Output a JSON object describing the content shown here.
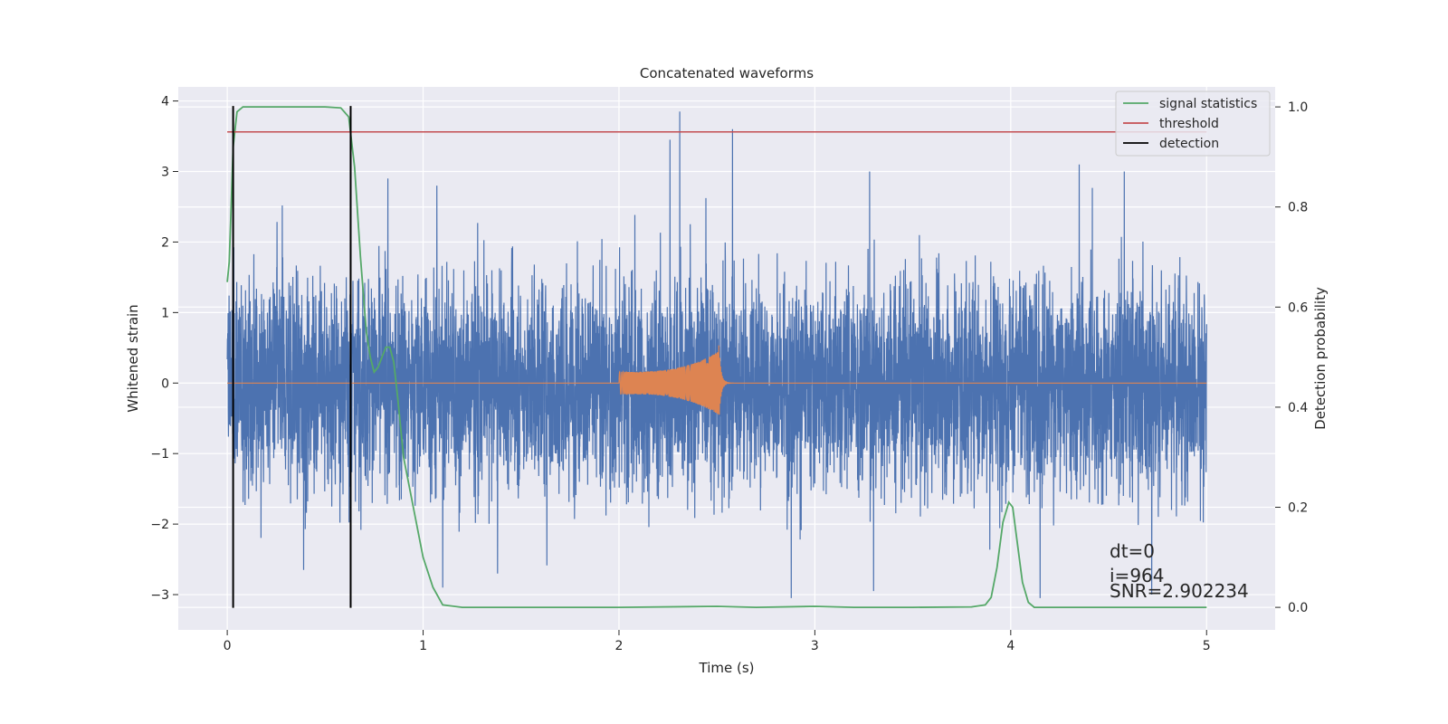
{
  "chart_data": {
    "type": "line",
    "title": "Concatenated waveforms",
    "xlabel": "Time (s)",
    "ylabel": "Whitened strain",
    "y2label": "Detection probability",
    "xlim": [
      -0.25,
      5.35
    ],
    "ylim": [
      -3.5,
      4.2
    ],
    "y2lim": [
      -0.045,
      1.04
    ],
    "xticks": [
      0,
      1,
      2,
      3,
      4,
      5
    ],
    "yticks": [
      -3,
      -2,
      -1,
      0,
      1,
      2,
      3,
      4
    ],
    "y2ticks": [
      0.0,
      0.2,
      0.4,
      0.6,
      0.8,
      1.0
    ],
    "grid": true,
    "legend_position": "top-right",
    "colors": {
      "background": "#eaeaf2",
      "noise": "#4c72b0",
      "injection": "#dd8452",
      "signal_statistics": "#55a868",
      "threshold": "#c44e52",
      "detection": "#000000"
    },
    "legend": [
      {
        "label": "signal statistics",
        "color": "#55a868"
      },
      {
        "label": "threshold",
        "color": "#c44e52"
      },
      {
        "label": "detection",
        "color": "#000000"
      }
    ],
    "noise": {
      "x_range": [
        0,
        5
      ],
      "typical_amplitude": 1.6,
      "peaks": [
        {
          "x": 2.31,
          "y": 3.85
        },
        {
          "x": 2.26,
          "y": 3.45
        },
        {
          "x": 2.58,
          "y": 3.6
        },
        {
          "x": 4.15,
          "y": 3.4
        },
        {
          "x": 1.07,
          "y": 2.8
        },
        {
          "x": 0.82,
          "y": 2.9
        },
        {
          "x": 3.28,
          "y": 3.0
        },
        {
          "x": 4.35,
          "y": 3.1
        },
        {
          "x": 4.58,
          "y": 3.0
        },
        {
          "x": 4.15,
          "y": -3.05
        },
        {
          "x": 2.88,
          "y": -3.05
        },
        {
          "x": 3.3,
          "y": -2.95
        },
        {
          "x": 1.1,
          "y": -2.9
        },
        {
          "x": 0.39,
          "y": -2.65
        },
        {
          "x": 4.72,
          "y": -3.0
        },
        {
          "x": 1.38,
          "y": -2.7
        }
      ]
    },
    "injection": {
      "start": 2.0,
      "merger": 2.51,
      "end": 2.6,
      "peak_amplitude": 0.45
    },
    "signal_statistics": {
      "x": [
        0.0,
        0.01,
        0.02,
        0.03,
        0.05,
        0.08,
        0.12,
        0.3,
        0.5,
        0.58,
        0.62,
        0.65,
        0.68,
        0.71,
        0.73,
        0.75,
        0.77,
        0.79,
        0.81,
        0.83,
        0.85,
        0.87,
        0.9,
        0.95,
        1.0,
        1.05,
        1.1,
        1.2,
        1.5,
        2.0,
        2.5,
        2.7,
        3.0,
        3.2,
        3.5,
        3.8,
        3.87,
        3.9,
        3.93,
        3.96,
        3.99,
        4.01,
        4.03,
        4.06,
        4.09,
        4.12,
        4.15,
        4.3,
        5.0
      ],
      "y": [
        0.65,
        0.69,
        0.8,
        0.92,
        0.99,
        1.0,
        1.0,
        1.0,
        1.0,
        0.998,
        0.98,
        0.88,
        0.7,
        0.55,
        0.5,
        0.47,
        0.48,
        0.5,
        0.52,
        0.52,
        0.49,
        0.42,
        0.3,
        0.2,
        0.1,
        0.04,
        0.005,
        0.0,
        0.0,
        0.0,
        0.002,
        0.0,
        0.002,
        0.0,
        0.0,
        0.001,
        0.005,
        0.02,
        0.08,
        0.17,
        0.21,
        0.2,
        0.14,
        0.05,
        0.01,
        0.0,
        0.0,
        0.0,
        0.0
      ]
    },
    "threshold": {
      "value": 0.95,
      "x_range": [
        0,
        5
      ]
    },
    "detections": [
      0.03,
      0.63
    ],
    "annotations": [
      "dt=0",
      "i=964",
      "SNR=2.902234"
    ]
  }
}
